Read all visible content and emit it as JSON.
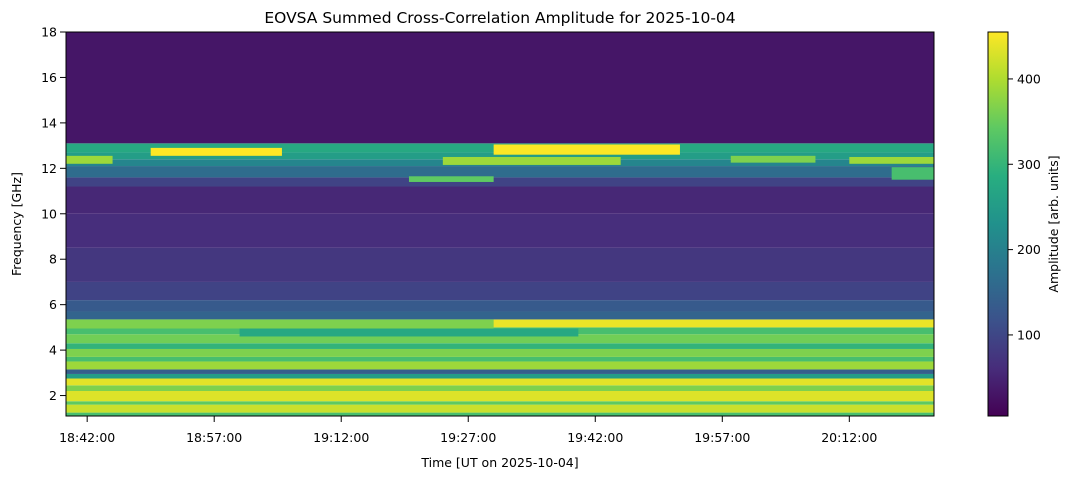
{
  "chart_data": {
    "type": "heatmap",
    "title": "EOVSA Summed Cross-Correlation Amplitude for 2025-10-04",
    "xlabel": "Time [UT on 2025-10-04]",
    "ylabel": "Frequency [GHz]",
    "colorbar_label": "Amplitude [arb. units]",
    "x_ticks": [
      "18:42:00",
      "18:57:00",
      "19:12:00",
      "19:27:00",
      "19:42:00",
      "19:57:00",
      "20:12:00"
    ],
    "y_ticks": [
      2,
      4,
      6,
      8,
      10,
      12,
      14,
      16,
      18
    ],
    "colorbar_ticks": [
      100,
      200,
      300,
      400
    ],
    "x_range": [
      "18:39:30",
      "20:22:00"
    ],
    "ylim": [
      1.1,
      18
    ],
    "color_range": [
      5,
      455
    ],
    "colormap": "viridis",
    "bands": [
      {
        "from": 1.1,
        "to": 1.25,
        "level": 0.7
      },
      {
        "from": 1.25,
        "to": 1.6,
        "level": 0.92
      },
      {
        "from": 1.6,
        "to": 1.75,
        "level": 0.75
      },
      {
        "from": 1.75,
        "to": 2.2,
        "level": 0.95
      },
      {
        "from": 2.2,
        "to": 2.45,
        "level": 0.8
      },
      {
        "from": 2.45,
        "to": 2.75,
        "level": 0.96
      },
      {
        "from": 2.75,
        "to": 2.95,
        "level": 0.55
      },
      {
        "from": 2.95,
        "to": 3.15,
        "level": 0.3
      },
      {
        "from": 3.15,
        "to": 3.5,
        "level": 0.85
      },
      {
        "from": 3.5,
        "to": 3.7,
        "level": 0.7
      },
      {
        "from": 3.7,
        "to": 4.05,
        "level": 0.8
      },
      {
        "from": 4.05,
        "to": 4.3,
        "level": 0.65
      },
      {
        "from": 4.3,
        "to": 4.7,
        "level": 0.78
      },
      {
        "from": 4.7,
        "to": 5.0,
        "level": 0.7
      },
      {
        "from": 5.0,
        "to": 5.35,
        "level": 0.97
      },
      {
        "from": 5.35,
        "to": 5.7,
        "level": 0.32
      },
      {
        "from": 5.7,
        "to": 6.2,
        "level": 0.28
      },
      {
        "from": 6.2,
        "to": 7.0,
        "level": 0.2
      },
      {
        "from": 7.0,
        "to": 8.5,
        "level": 0.16
      },
      {
        "from": 8.5,
        "to": 10.0,
        "level": 0.13
      },
      {
        "from": 10.0,
        "to": 11.2,
        "level": 0.11
      },
      {
        "from": 11.2,
        "to": 11.6,
        "level": 0.2
      },
      {
        "from": 11.6,
        "to": 12.1,
        "level": 0.35
      },
      {
        "from": 12.1,
        "to": 12.4,
        "level": 0.45
      },
      {
        "from": 12.4,
        "to": 12.7,
        "level": 0.55
      },
      {
        "from": 12.7,
        "to": 13.1,
        "level": 0.6
      },
      {
        "from": 13.1,
        "to": 18.0,
        "level": 0.06
      }
    ],
    "features": [
      {
        "t_start": "18:49:30",
        "t_end": "19:05:00",
        "f_from": 12.55,
        "f_to": 12.9,
        "level": 1.0
      },
      {
        "t_start": "18:39:30",
        "t_end": "18:45:00",
        "f_from": 12.2,
        "f_to": 12.55,
        "level": 0.85
      },
      {
        "t_start": "19:30:00",
        "t_end": "19:52:00",
        "f_from": 12.6,
        "f_to": 13.05,
        "level": 1.0
      },
      {
        "t_start": "19:24:00",
        "t_end": "19:45:00",
        "f_from": 12.15,
        "f_to": 12.5,
        "level": 0.85
      },
      {
        "t_start": "19:58:00",
        "t_end": "20:08:00",
        "f_from": 12.25,
        "f_to": 12.55,
        "level": 0.8
      },
      {
        "t_start": "20:12:00",
        "t_end": "20:22:00",
        "f_from": 12.2,
        "f_to": 12.5,
        "level": 0.85
      },
      {
        "t_start": "19:20:00",
        "t_end": "19:30:00",
        "f_from": 11.4,
        "f_to": 11.65,
        "level": 0.75
      },
      {
        "t_start": "20:17:00",
        "t_end": "20:22:00",
        "f_from": 11.5,
        "f_to": 12.05,
        "level": 0.7
      },
      {
        "t_start": "18:39:30",
        "t_end": "19:30:00",
        "f_from": 4.95,
        "f_to": 5.35,
        "level": 0.8
      },
      {
        "t_start": "19:00:00",
        "t_end": "19:40:00",
        "f_from": 4.6,
        "f_to": 4.95,
        "level": 0.6
      }
    ]
  }
}
